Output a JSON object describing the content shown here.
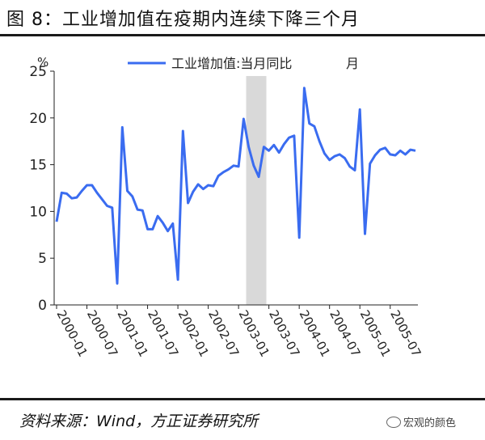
{
  "header": {
    "title": "图 8：工业增加值在疫期内连续下降三个月"
  },
  "footer": {
    "source": "资料来源：Wind，方正证券研究所",
    "watermark": "宏观的颜色"
  },
  "colors": {
    "series": "#3a6cf0",
    "shade": "#d9d9d9",
    "axis": "#222222"
  },
  "chart_data": {
    "type": "line",
    "title": "",
    "ylabel": "%",
    "xlabel": "",
    "ylim": [
      0,
      25
    ],
    "yticks": [
      0,
      5,
      10,
      15,
      20,
      25
    ],
    "xticks": [
      "2000-01",
      "2000-07",
      "2001-01",
      "2001-07",
      "2002-01",
      "2002-07",
      "2003-01",
      "2003-07",
      "2004-01",
      "2004-07",
      "2005-01",
      "2005-07"
    ],
    "legend_position": "top",
    "grid": false,
    "shaded_range": [
      "2003-03",
      "2003-06"
    ],
    "x": [
      "2000-01",
      "2000-02",
      "2000-03",
      "2000-04",
      "2000-05",
      "2000-06",
      "2000-07",
      "2000-08",
      "2000-09",
      "2000-10",
      "2000-11",
      "2000-12",
      "2001-01",
      "2001-02",
      "2001-03",
      "2001-04",
      "2001-05",
      "2001-06",
      "2001-07",
      "2001-08",
      "2001-09",
      "2001-10",
      "2001-11",
      "2001-12",
      "2002-01",
      "2002-02",
      "2002-03",
      "2002-04",
      "2002-05",
      "2002-06",
      "2002-07",
      "2002-08",
      "2002-09",
      "2002-10",
      "2002-11",
      "2002-12",
      "2003-01",
      "2003-02",
      "2003-03",
      "2003-04",
      "2003-05",
      "2003-06",
      "2003-07",
      "2003-08",
      "2003-09",
      "2003-10",
      "2003-11",
      "2003-12",
      "2004-01",
      "2004-02",
      "2004-03",
      "2004-04",
      "2004-05",
      "2004-06",
      "2004-07",
      "2004-08",
      "2004-09",
      "2004-10",
      "2004-11",
      "2004-12",
      "2005-01",
      "2005-02",
      "2005-03",
      "2005-04",
      "2005-05",
      "2005-06",
      "2005-07",
      "2005-08",
      "2005-09",
      "2005-10",
      "2005-11",
      "2005-12"
    ],
    "series": [
      {
        "name": "工业增加值:当月同比",
        "unit": "月",
        "values": [
          8.9,
          12.0,
          11.9,
          11.4,
          11.5,
          12.2,
          12.8,
          12.8,
          12.0,
          11.3,
          10.6,
          10.4,
          2.3,
          19.0,
          12.2,
          11.6,
          10.2,
          10.1,
          8.1,
          8.1,
          9.5,
          8.8,
          7.9,
          8.7,
          2.7,
          18.6,
          10.9,
          12.1,
          12.9,
          12.4,
          12.8,
          12.7,
          13.8,
          14.2,
          14.5,
          14.9,
          14.8,
          19.9,
          16.9,
          14.9,
          13.7,
          16.9,
          16.5,
          17.1,
          16.3,
          17.2,
          17.9,
          18.1,
          7.2,
          23.2,
          19.4,
          19.1,
          17.5,
          16.2,
          15.5,
          15.9,
          16.1,
          15.7,
          14.8,
          14.4,
          20.9,
          7.6,
          15.1,
          16.0,
          16.6,
          16.8,
          16.1,
          16.0,
          16.5,
          16.1,
          16.6,
          16.5
        ]
      }
    ]
  }
}
